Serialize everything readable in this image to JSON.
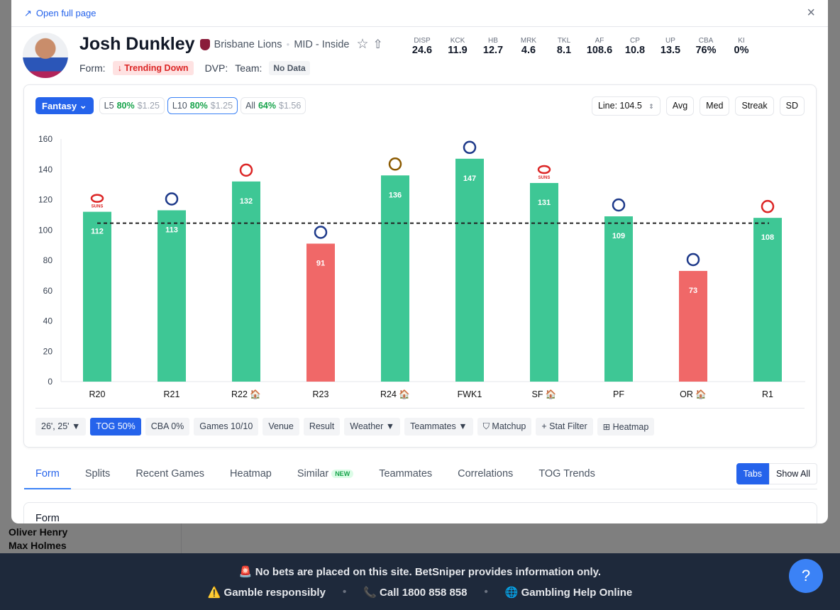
{
  "background": {
    "sidebar_names": [
      "Oliver Henry",
      "Max Holmes"
    ]
  },
  "modal": {
    "open_full_page": "Open full page",
    "close_icon": "×"
  },
  "player": {
    "name": "Josh Dunkley",
    "team": "Brisbane Lions",
    "position": "MID - Inside",
    "form_label": "Form:",
    "form_value": "↓ Trending Down",
    "dvp_label": "DVP:",
    "team_label": "Team:",
    "team_value": "No Data"
  },
  "stats": [
    {
      "label": "DISP",
      "value": "24.6"
    },
    {
      "label": "KCK",
      "value": "11.9"
    },
    {
      "label": "HB",
      "value": "12.7"
    },
    {
      "label": "MRK",
      "value": "4.6"
    },
    {
      "label": "TKL",
      "value": "8.1"
    },
    {
      "label": "AF",
      "value": "108.6"
    },
    {
      "label": "CP",
      "value": "10.8"
    },
    {
      "label": "UP",
      "value": "13.5"
    },
    {
      "label": "CBA",
      "value": "76%"
    },
    {
      "label": "KI",
      "value": "0%"
    }
  ],
  "controls": {
    "stat_select": "Fantasy",
    "ranges": [
      {
        "label": "L5",
        "pct": "80%",
        "price": "$1.25"
      },
      {
        "label": "L10",
        "pct": "80%",
        "price": "$1.25",
        "selected": true
      },
      {
        "label": "All",
        "pct": "64%",
        "price": "$1.56"
      }
    ],
    "line": "Line: 104.5",
    "buttons": [
      "Avg",
      "Med",
      "Streak",
      "SD"
    ]
  },
  "chart_data": {
    "type": "bar",
    "categories": [
      "R20",
      "R21",
      "R22 🏠",
      "R23",
      "R24 🏠",
      "FWK1",
      "SF 🏠",
      "PF",
      "OR 🏠",
      "R1"
    ],
    "values": [
      112,
      113,
      132,
      91,
      136,
      147,
      131,
      109,
      73,
      108
    ],
    "opponents": [
      "SUNS",
      "Collingwood",
      "Sydney",
      "Fremantle",
      "Hawthorn",
      "Geelong",
      "SUNS",
      "Collingwood",
      "Western Bulldogs",
      "Sydney"
    ],
    "line": 104.5,
    "ylim": [
      0,
      160
    ],
    "yticks": [
      0,
      20,
      40,
      60,
      80,
      100,
      120,
      140,
      160
    ],
    "colors": {
      "over": "#3ec795",
      "under": "#f06868"
    }
  },
  "filters": [
    {
      "label": "26', 25' ▼"
    },
    {
      "label": "TOG 50%",
      "active": true
    },
    {
      "label": "CBA 0%"
    },
    {
      "label": "Games 10/10"
    },
    {
      "label": "Venue"
    },
    {
      "label": "Result"
    },
    {
      "label": "Weather ▼"
    },
    {
      "label": "Teammates ▼"
    },
    {
      "label": "⛉ Matchup"
    },
    {
      "label": "+ Stat Filter"
    },
    {
      "label": "⊞ Heatmap"
    }
  ],
  "tabs": [
    "Form",
    "Splits",
    "Recent Games",
    "Heatmap",
    "Similar",
    "Teammates",
    "Correlations",
    "TOG Trends"
  ],
  "new_badge": "NEW",
  "view_toggle": [
    "Tabs",
    "Show All"
  ],
  "section_title": "Form",
  "footer": {
    "line1": "🚨 No bets are placed on this site. BetSniper provides information only.",
    "gamble": "⚠️ Gamble responsibly",
    "call": "📞 Call 1800 858 858",
    "help": "🌐 Gambling Help Online",
    "sep": "•"
  }
}
